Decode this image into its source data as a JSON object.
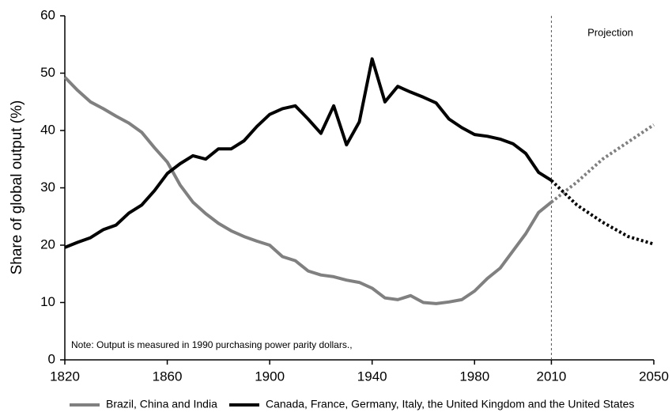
{
  "chart_data": {
    "type": "line",
    "ylabel": "Share of global output (%)",
    "note": "Note: Output is measured in 1990 purchasing power parity dollars.,",
    "projection_label": "Projection",
    "projection_x": 2010,
    "x": [
      1820,
      1825,
      1830,
      1835,
      1840,
      1845,
      1850,
      1855,
      1860,
      1865,
      1870,
      1875,
      1880,
      1885,
      1890,
      1895,
      1900,
      1905,
      1910,
      1915,
      1920,
      1925,
      1930,
      1935,
      1940,
      1945,
      1950,
      1955,
      1960,
      1965,
      1970,
      1975,
      1980,
      1985,
      1990,
      1995,
      2000,
      2005,
      2010,
      2020,
      2030,
      2040,
      2050
    ],
    "series": [
      {
        "name": "Brazil, China and India",
        "color": "#808080",
        "values": [
          49.3,
          47,
          45,
          43.8,
          42.5,
          41.3,
          39.7,
          37,
          34.5,
          30.5,
          27.5,
          25.5,
          23.8,
          22.5,
          21.5,
          20.7,
          20,
          18,
          17.3,
          15.5,
          14.8,
          14.5,
          13.9,
          13.5,
          12.5,
          10.8,
          10.5,
          11.2,
          10,
          9.8,
          10.1,
          10.5,
          12,
          14.2,
          16,
          19,
          22,
          25.7,
          27.5,
          31,
          35,
          38,
          41
        ]
      },
      {
        "name": "Canada, France, Germany, Italy, the United Kingdom and the United States",
        "color": "#000000",
        "values": [
          19.6,
          20.5,
          21.3,
          22.7,
          23.5,
          25.6,
          27,
          29.5,
          32.5,
          34.2,
          35.6,
          35,
          36.8,
          36.8,
          38.2,
          40.7,
          42.8,
          43.8,
          44.3,
          42,
          39.5,
          44.3,
          37.5,
          41.5,
          52.5,
          45,
          47.7,
          46.7,
          45.8,
          44.8,
          42,
          40.5,
          39.3,
          39,
          38.5,
          37.7,
          36,
          32.7,
          31.3,
          27,
          24,
          21.5,
          20.2
        ]
      }
    ],
    "xlim": [
      1820,
      2050
    ],
    "xticks": [
      1820,
      1860,
      1900,
      1940,
      1980,
      2010,
      2050
    ],
    "ylim": [
      0,
      60
    ],
    "yticks": [
      0,
      10,
      20,
      30,
      40,
      50,
      60
    ],
    "grid": false,
    "legend": "bottom"
  }
}
